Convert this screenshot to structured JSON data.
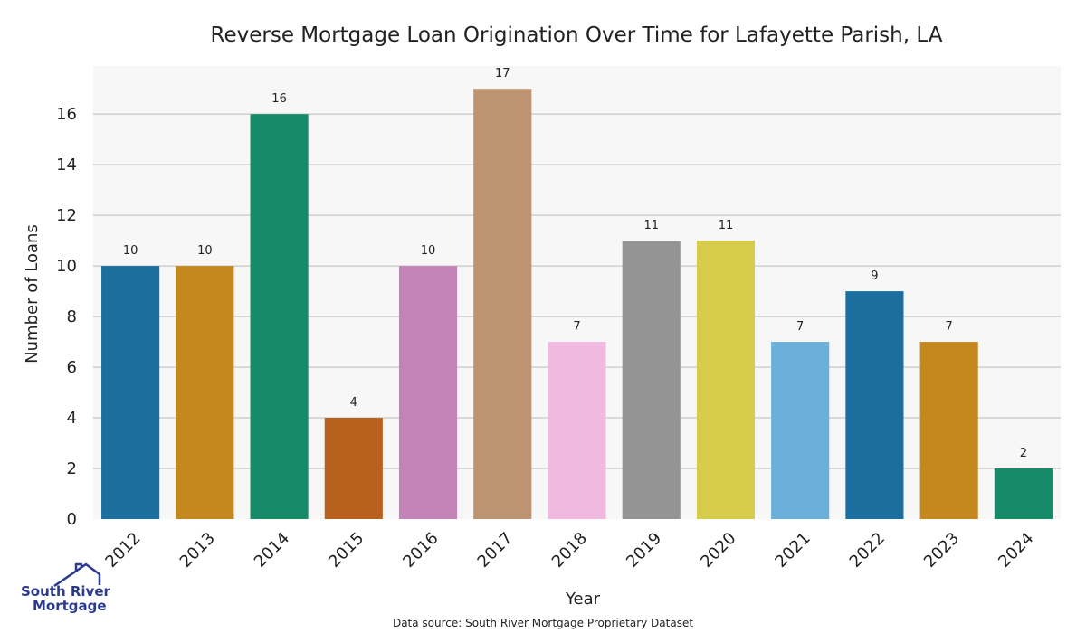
{
  "chart_data": {
    "type": "bar",
    "title": "Reverse Mortgage Loan Origination Over Time for Lafayette Parish, LA",
    "xlabel": "Year",
    "ylabel": "Number of Loans",
    "categories": [
      "2012",
      "2013",
      "2014",
      "2015",
      "2016",
      "2017",
      "2018",
      "2019",
      "2020",
      "2021",
      "2022",
      "2023",
      "2024"
    ],
    "values": [
      10,
      10,
      16,
      4,
      10,
      17,
      7,
      11,
      11,
      7,
      9,
      7,
      2
    ],
    "colors": [
      "#1a6f9f",
      "#c4881f",
      "#168a69",
      "#b8611e",
      "#c383b6",
      "#bd9471",
      "#f1b9e0",
      "#949494",
      "#d6cb4a",
      "#6ab0da",
      "#1a6f9f",
      "#c4881f",
      "#168a69"
    ],
    "ylim": [
      0,
      17.9
    ],
    "yticks": [
      0,
      2,
      4,
      6,
      8,
      10,
      12,
      14,
      16
    ],
    "grid": true,
    "background": "#f7f7f7",
    "source_note": "Data source: South River Mortgage Proprietary Dataset",
    "logo": {
      "line1": "South River",
      "line2": "Mortgage",
      "color": "#2b3a8c"
    }
  }
}
